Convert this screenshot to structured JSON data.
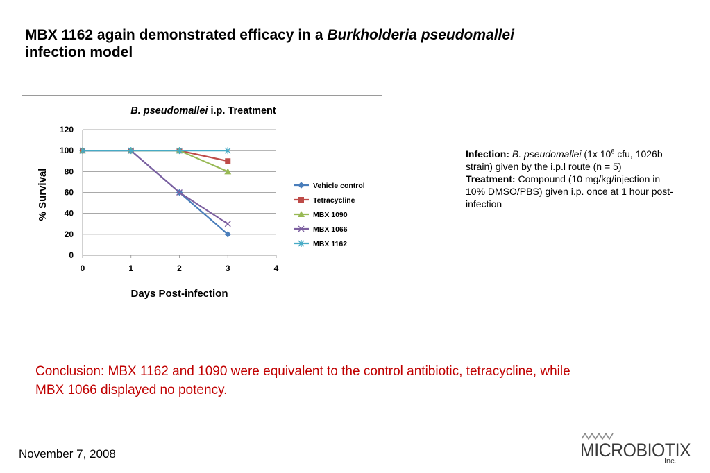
{
  "slide": {
    "title_part1": "MBX 1162 again demonstrated efficacy in a ",
    "title_italic": "Burkholderia pseudomallei",
    "title_part2": "infection model"
  },
  "info": {
    "infection_label": "Infection:",
    "infection_species": "B. pseudomallei",
    "infection_dose_a": "(1x 10",
    "infection_dose_exp": "6",
    "infection_dose_b": "cfu, 1026b strain) given by the i.p.l route (n = 5)",
    "treatment_label": "Treatment:",
    "treatment_text": "Compound (10 mg/kg/injection in 10% DMSO/PBS) given i.p. once at 1 hour post-infection"
  },
  "conclusion": "Conclusion:  MBX 1162 and 1090 were equivalent to the control antibiotic, tetracycline, while MBX 1066 displayed no potency.",
  "footer": {
    "date": "November 7, 2008"
  },
  "logo": {
    "text": "MICROBIOTIX",
    "suffix": "Inc."
  },
  "chart_data": {
    "type": "line",
    "title_italic": "B. pseudomallei",
    "title_rest": "i.p. Treatment",
    "xlabel": "Days Post-infection",
    "ylabel": "% Survival",
    "xlim": [
      0,
      4
    ],
    "ylim": [
      0,
      120
    ],
    "xticks": [
      0,
      1,
      2,
      3,
      4
    ],
    "yticks": [
      0,
      20,
      40,
      60,
      80,
      100,
      120
    ],
    "grid": "horizontal",
    "legend_position": "right",
    "series": [
      {
        "name": "Vehicle control",
        "color": "#4a7ebb",
        "marker": "diamond",
        "x": [
          0,
          1,
          2,
          3
        ],
        "y": [
          100,
          100,
          60,
          20
        ]
      },
      {
        "name": "Tetracycline",
        "color": "#be4b48",
        "marker": "square",
        "x": [
          0,
          1,
          2,
          3
        ],
        "y": [
          100,
          100,
          100,
          90
        ]
      },
      {
        "name": "MBX 1090",
        "color": "#98b954",
        "marker": "triangle",
        "x": [
          0,
          1,
          2,
          3
        ],
        "y": [
          100,
          100,
          100,
          80
        ]
      },
      {
        "name": "MBX 1066",
        "color": "#7d60a0",
        "marker": "x",
        "x": [
          0,
          1,
          2,
          3
        ],
        "y": [
          100,
          100,
          60,
          30
        ]
      },
      {
        "name": "MBX 1162",
        "color": "#46aac5",
        "marker": "star",
        "x": [
          0,
          1,
          2,
          3
        ],
        "y": [
          100,
          100,
          100,
          100
        ]
      }
    ]
  }
}
